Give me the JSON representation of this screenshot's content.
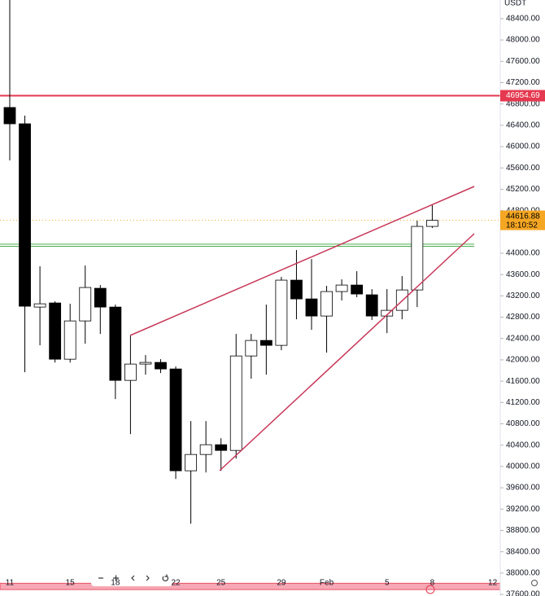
{
  "chart_data": {
    "type": "candlestick",
    "currency": "USDT",
    "categories": [
      "11",
      null,
      null,
      null,
      "15",
      null,
      null,
      "18",
      null,
      null,
      null,
      "22",
      null,
      null,
      "25",
      null,
      null,
      null,
      "29",
      null,
      null,
      "Feb",
      null,
      null,
      null,
      "5",
      null,
      null,
      "8",
      null,
      null,
      null,
      "12"
    ],
    "open": [
      46734,
      46428,
      42990,
      43067,
      42012,
      42730,
      43342,
      42990,
      41615,
      41921,
      41952,
      41829,
      39919,
      40225,
      40408,
      40301,
      42073,
      42364,
      42272,
      43495,
      43143,
      42822,
      43281,
      43403,
      43220,
      42822,
      42929,
      43311,
      44503,
      null,
      null,
      null,
      null
    ],
    "high": [
      48970,
      46581,
      43755,
      43100,
      43052,
      43770,
      43403,
      43036,
      42456,
      42089,
      42012,
      41875,
      40851,
      40851,
      40530,
      42486,
      42486,
      43036,
      43556,
      44060,
      43892,
      43388,
      43510,
      43663,
      43327,
      43327,
      43571,
      44610,
      44915,
      null,
      null,
      null,
      null
    ],
    "low": [
      45741,
      41768,
      42272,
      41950,
      41950,
      42303,
      42486,
      41264,
      40607,
      41722,
      41753,
      39766,
      38926,
      39888,
      39919,
      40148,
      41646,
      41722,
      42181,
      42761,
      42563,
      42135,
      43113,
      43174,
      42746,
      42501,
      42761,
      42990,
      44473,
      null,
      null,
      null,
      null
    ],
    "close": [
      46428,
      43006,
      43051,
      42012,
      42730,
      43357,
      42990,
      41615,
      41921,
      41952,
      41829,
      39919,
      40225,
      40408,
      40301,
      42073,
      42364,
      42272,
      43495,
      43143,
      42822,
      43281,
      43403,
      43235,
      42822,
      42929,
      43311,
      44503,
      44616.88,
      null,
      null,
      null,
      null
    ],
    "up_color": "#ffffff",
    "down_color": "#000000",
    "ylim": [
      37570,
      48750
    ],
    "yticks": [
      {
        "value": 48400,
        "label": "48400.00"
      },
      {
        "value": 48000,
        "label": "48000.00"
      },
      {
        "value": 47600,
        "label": "47600.00"
      },
      {
        "value": 47200,
        "label": "47200.00"
      },
      {
        "value": 46800,
        "label": "46800.00"
      },
      {
        "value": 46400,
        "label": "46400.00"
      },
      {
        "value": 46000,
        "label": "46000.00"
      },
      {
        "value": 45600,
        "label": "45600.00"
      },
      {
        "value": 45200,
        "label": "45200.00"
      },
      {
        "value": 44800,
        "label": "44800.00"
      },
      {
        "value": 44000,
        "label": "44000.00"
      },
      {
        "value": 43600,
        "label": "43600.00"
      },
      {
        "value": 43200,
        "label": "43200.00"
      },
      {
        "value": 42800,
        "label": "42800.00"
      },
      {
        "value": 42400,
        "label": "42400.00"
      },
      {
        "value": 42000,
        "label": "42000.00"
      },
      {
        "value": 41600,
        "label": "41600.00"
      },
      {
        "value": 41200,
        "label": "41200.00"
      },
      {
        "value": 40800,
        "label": "40800.00"
      },
      {
        "value": 40400,
        "label": "40400.00"
      },
      {
        "value": 40000,
        "label": "40000.00"
      },
      {
        "value": 39600,
        "label": "39600.00"
      },
      {
        "value": 39200,
        "label": "39200.00"
      },
      {
        "value": 38800,
        "label": "38800.00"
      },
      {
        "value": 38400,
        "label": "38400.00"
      },
      {
        "value": 38000,
        "label": "38000.00"
      },
      {
        "value": 37600,
        "label": "37600.00"
      }
    ],
    "price_line": {
      "value": 46954.69,
      "color": "#e53950"
    },
    "levels": {
      "values": [
        44130,
        44170
      ],
      "color": "#4caf50"
    },
    "zone": {
      "values": [
        37690,
        37810
      ],
      "color": "#f7a8b4"
    },
    "last_price": {
      "value": 44616.88,
      "countdown": "18:10:52",
      "color": "#f5a623"
    }
  }
}
